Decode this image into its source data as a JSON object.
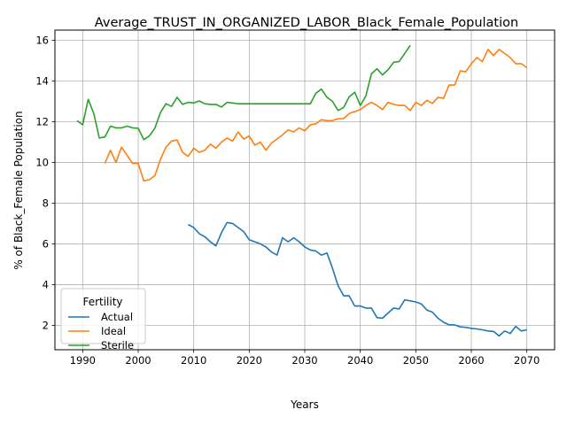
{
  "chart_data": {
    "type": "line",
    "title": "Average_TRUST_IN_ORGANIZED_LABOR_Black_Female_Population",
    "xlabel": "Years",
    "ylabel": "% of Black_Female Population",
    "xlim": [
      1985,
      2075
    ],
    "ylim": [
      0.8,
      16.5
    ],
    "xticks": [
      1990,
      2000,
      2010,
      2020,
      2030,
      2040,
      2050,
      2060,
      2070
    ],
    "yticks": [
      2,
      4,
      6,
      8,
      10,
      12,
      14,
      16
    ],
    "grid": true,
    "legend": {
      "title": "Fertility",
      "placement": "lower-left"
    },
    "series": [
      {
        "name": "Actual",
        "color": "#1f77b4",
        "x": [
          2009,
          2010,
          2011,
          2012,
          2013,
          2014,
          2015,
          2016,
          2017,
          2018,
          2019,
          2020,
          2021,
          2022,
          2023,
          2024,
          2025,
          2026,
          2027,
          2028,
          2029,
          2030,
          2031,
          2032,
          2033,
          2034,
          2035,
          2036,
          2037,
          2038,
          2039,
          2040,
          2041,
          2042,
          2043,
          2044,
          2045,
          2046,
          2047,
          2048,
          2049,
          2050,
          2051,
          2052,
          2053,
          2054,
          2055,
          2056,
          2057,
          2058,
          2059,
          2060,
          2061,
          2062,
          2063,
          2064,
          2065,
          2066,
          2067,
          2068,
          2069,
          2070
        ],
        "y": [
          6.95,
          6.8,
          6.5,
          6.35,
          6.1,
          5.9,
          6.55,
          7.05,
          7.0,
          6.8,
          6.6,
          6.2,
          6.1,
          6.0,
          5.85,
          5.6,
          5.45,
          6.3,
          6.1,
          6.3,
          6.1,
          5.85,
          5.7,
          5.65,
          5.45,
          5.55,
          4.8,
          3.95,
          3.45,
          3.45,
          2.95,
          2.95,
          2.85,
          2.85,
          2.38,
          2.35,
          2.6,
          2.85,
          2.8,
          3.25,
          3.2,
          3.15,
          3.05,
          2.75,
          2.65,
          2.35,
          2.15,
          2.02,
          2.02,
          1.92,
          1.9,
          1.85,
          1.82,
          1.78,
          1.72,
          1.7,
          1.48,
          1.72,
          1.6,
          1.95,
          1.72,
          1.78
        ]
      },
      {
        "name": "Ideal",
        "color": "#ff7f0e",
        "x": [
          1994,
          1995,
          1996,
          1997,
          1998,
          1999,
          2000,
          2001,
          2002,
          2003,
          2004,
          2005,
          2006,
          2007,
          2008,
          2009,
          2010,
          2011,
          2012,
          2013,
          2014,
          2015,
          2016,
          2017,
          2018,
          2019,
          2020,
          2021,
          2022,
          2023,
          2024,
          2025,
          2026,
          2027,
          2028,
          2029,
          2030,
          2031,
          2032,
          2033,
          2034,
          2035,
          2036,
          2037,
          2038,
          2039,
          2040,
          2041,
          2042,
          2043,
          2044,
          2045,
          2046,
          2047,
          2048,
          2049,
          2050,
          2051,
          2052,
          2053,
          2054,
          2055,
          2056,
          2057,
          2058,
          2059,
          2060,
          2061,
          2062,
          2063,
          2064,
          2065,
          2066,
          2067,
          2068,
          2069,
          2070
        ],
        "y": [
          9.95,
          10.6,
          10.0,
          10.75,
          10.35,
          9.95,
          9.95,
          9.1,
          9.15,
          9.35,
          10.15,
          10.75,
          11.05,
          11.1,
          10.5,
          10.3,
          10.7,
          10.5,
          10.6,
          10.9,
          10.7,
          11.0,
          11.2,
          11.05,
          11.5,
          11.15,
          11.3,
          10.85,
          11.0,
          10.6,
          10.95,
          11.15,
          11.35,
          11.6,
          11.5,
          11.7,
          11.55,
          11.85,
          11.9,
          12.1,
          12.05,
          12.05,
          12.15,
          12.15,
          12.4,
          12.5,
          12.6,
          12.8,
          12.95,
          12.8,
          12.6,
          12.95,
          12.85,
          12.8,
          12.8,
          12.55,
          12.95,
          12.8,
          13.05,
          12.9,
          13.2,
          13.15,
          13.8,
          13.8,
          14.5,
          14.45,
          14.85,
          15.15,
          14.95,
          15.55,
          15.25,
          15.55,
          15.35,
          15.15,
          14.85,
          14.85,
          14.65
        ]
      },
      {
        "name": "Sterile",
        "color": "#2ca02c",
        "x": [
          1989,
          1990,
          1991,
          1992,
          1993,
          1994,
          1995,
          1996,
          1997,
          1998,
          1999,
          2000,
          2001,
          2002,
          2003,
          2004,
          2005,
          2006,
          2007,
          2008,
          2009,
          2010,
          2011,
          2012,
          2013,
          2014,
          2015,
          2016,
          2017,
          2018,
          2019,
          2020,
          2021,
          2022,
          2023,
          2024,
          2025,
          2026,
          2027,
          2028,
          2029,
          2030,
          2031,
          2032,
          2033,
          2034,
          2035,
          2036,
          2037,
          2038,
          2039,
          2040,
          2041,
          2042,
          2043,
          2044,
          2045,
          2046,
          2047,
          2048,
          2049
        ],
        "y": [
          12.05,
          11.85,
          13.1,
          12.4,
          11.2,
          11.25,
          11.78,
          11.7,
          11.7,
          11.78,
          11.7,
          11.68,
          11.12,
          11.3,
          11.68,
          12.45,
          12.88,
          12.75,
          13.2,
          12.85,
          12.95,
          12.92,
          13.02,
          12.88,
          12.85,
          12.85,
          12.72,
          12.95,
          12.92,
          12.88,
          12.88,
          12.88,
          12.88,
          12.88,
          12.88,
          12.88,
          12.88,
          12.88,
          12.88,
          12.88,
          12.88,
          12.88,
          12.88,
          13.4,
          13.6,
          13.2,
          13.0,
          12.55,
          12.7,
          13.22,
          13.45,
          12.8,
          13.25,
          14.35,
          14.6,
          14.3,
          14.55,
          14.92,
          14.95,
          15.35,
          15.75
        ]
      }
    ]
  }
}
